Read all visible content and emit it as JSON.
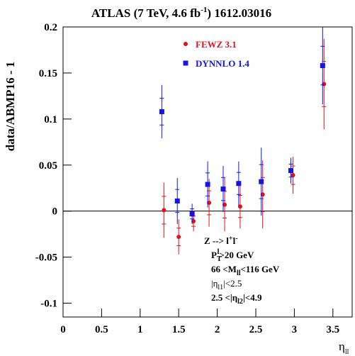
{
  "chart_data": {
    "type": "scatter",
    "title": [
      "ATLAS (7 TeV, 4.6 fb",
      "-1",
      ") 1612.03016"
    ],
    "y_label": "data/ABMP16 - 1",
    "x_label": [
      "η",
      "ll"
    ],
    "xlim": [
      0,
      3.75
    ],
    "ylim": [
      -0.115,
      0.2
    ],
    "xticks": [
      0,
      0.5,
      1,
      1.5,
      2,
      2.5,
      3,
      3.5
    ],
    "yticks": [
      0.2,
      0.15,
      0.1,
      0.05,
      0,
      -0.05,
      -0.1
    ],
    "reference_line": 0,
    "series": [
      {
        "name": "FEWZ 3.1",
        "color": "#e3101c",
        "marker": "circle",
        "x": [
          1.308,
          1.5,
          1.692,
          1.894,
          2.096,
          2.297,
          2.589,
          2.983,
          3.385
        ],
        "y": [
          0.001,
          -0.028,
          -0.011,
          0.009,
          0.007,
          0.005,
          0.018,
          0.039,
          0.138
        ],
        "errors": [
          0.03,
          0.019,
          0.011,
          0.026,
          0.029,
          0.024,
          0.037,
          0.02,
          0.049
        ]
      },
      {
        "name": "DYNNLO 1.4",
        "color": "#1414e6",
        "marker": "square",
        "x": [
          1.281,
          1.482,
          1.674,
          1.876,
          2.077,
          2.278,
          2.571,
          2.955,
          3.367
        ],
        "y": [
          0.108,
          0.011,
          -0.003,
          0.029,
          0.024,
          0.03,
          0.032,
          0.044,
          0.158
        ],
        "errors": [
          0.029,
          0.025,
          0.011,
          0.025,
          0.025,
          0.024,
          0.037,
          0.014,
          0.042
        ]
      }
    ],
    "annotations": [
      [
        "Z --> l",
        "+",
        "l",
        "-"
      ],
      [
        "P",
        "T",
        "l",
        ">20 GeV"
      ],
      [
        "66 <M",
        "ll",
        "<116 GeV"
      ],
      [
        "|η",
        "l1",
        "|<2.5"
      ],
      [
        "2.5 <|η",
        "l2",
        "|<4.9"
      ]
    ]
  }
}
